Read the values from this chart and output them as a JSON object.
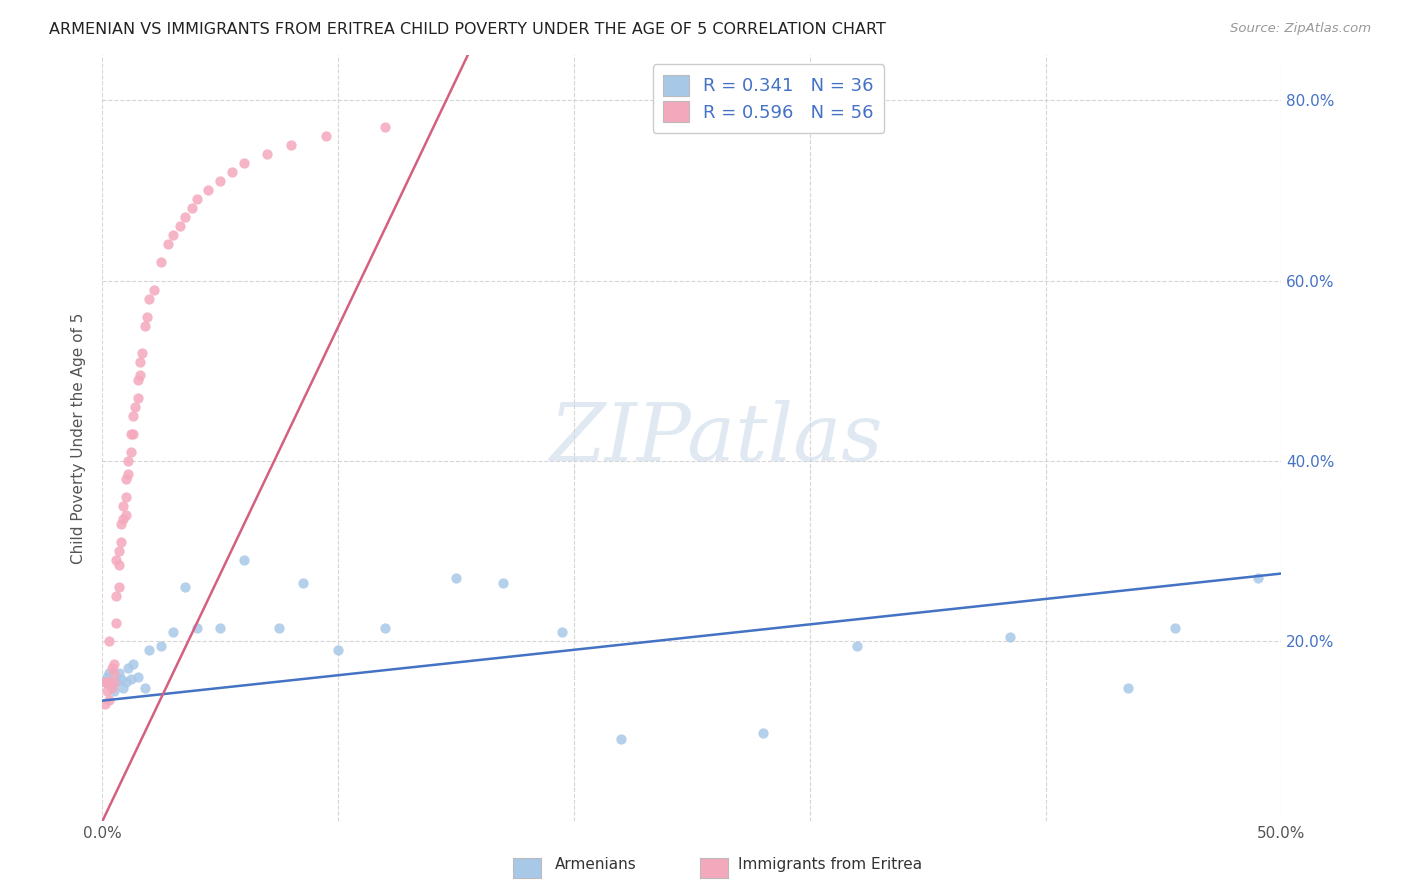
{
  "title": "ARMENIAN VS IMMIGRANTS FROM ERITREA CHILD POVERTY UNDER THE AGE OF 5 CORRELATION CHART",
  "source": "Source: ZipAtlas.com",
  "ylabel": "Child Poverty Under the Age of 5",
  "xlim": [
    0.0,
    0.5
  ],
  "ylim": [
    0.0,
    0.85
  ],
  "xtick_vals": [
    0.0,
    0.1,
    0.2,
    0.3,
    0.4,
    0.5
  ],
  "ytick_vals": [
    0.0,
    0.2,
    0.4,
    0.6,
    0.8
  ],
  "ytick_labels": [
    "",
    "20.0%",
    "40.0%",
    "60.0%",
    "80.0%"
  ],
  "xtick_labels": [
    "0.0%",
    "",
    "",
    "",
    "",
    "50.0%"
  ],
  "blue_color": "#A8C8E8",
  "pink_color": "#F4A8BC",
  "blue_line_color": "#4472C4",
  "pink_line_color": "#D46080",
  "watermark_text": "ZIPatlas",
  "background_color": "#FFFFFF",
  "grid_color": "#CCCCCC",
  "arm_x": [
    0.001,
    0.002,
    0.003,
    0.004,
    0.005,
    0.006,
    0.007,
    0.008,
    0.009,
    0.01,
    0.011,
    0.012,
    0.013,
    0.015,
    0.018,
    0.02,
    0.025,
    0.03,
    0.035,
    0.04,
    0.05,
    0.06,
    0.075,
    0.085,
    0.1,
    0.12,
    0.15,
    0.17,
    0.195,
    0.22,
    0.28,
    0.32,
    0.385,
    0.435,
    0.455,
    0.49
  ],
  "arm_y": [
    0.155,
    0.16,
    0.165,
    0.15,
    0.145,
    0.155,
    0.165,
    0.158,
    0.148,
    0.155,
    0.17,
    0.158,
    0.175,
    0.16,
    0.148,
    0.19,
    0.195,
    0.21,
    0.26,
    0.215,
    0.215,
    0.29,
    0.215,
    0.265,
    0.19,
    0.215,
    0.27,
    0.265,
    0.21,
    0.092,
    0.098,
    0.195,
    0.205,
    0.148,
    0.215,
    0.27
  ],
  "eri_x": [
    0.001,
    0.001,
    0.002,
    0.002,
    0.003,
    0.003,
    0.003,
    0.004,
    0.004,
    0.005,
    0.005,
    0.005,
    0.006,
    0.006,
    0.006,
    0.007,
    0.007,
    0.007,
    0.008,
    0.008,
    0.009,
    0.009,
    0.01,
    0.01,
    0.01,
    0.011,
    0.011,
    0.012,
    0.012,
    0.013,
    0.013,
    0.014,
    0.015,
    0.015,
    0.016,
    0.016,
    0.017,
    0.018,
    0.019,
    0.02,
    0.022,
    0.025,
    0.028,
    0.03,
    0.033,
    0.035,
    0.038,
    0.04,
    0.045,
    0.05,
    0.055,
    0.06,
    0.07,
    0.08,
    0.095,
    0.12
  ],
  "eri_y": [
    0.155,
    0.13,
    0.155,
    0.145,
    0.2,
    0.155,
    0.135,
    0.17,
    0.148,
    0.175,
    0.165,
    0.155,
    0.29,
    0.25,
    0.22,
    0.3,
    0.285,
    0.26,
    0.33,
    0.31,
    0.35,
    0.335,
    0.38,
    0.36,
    0.34,
    0.4,
    0.385,
    0.43,
    0.41,
    0.45,
    0.43,
    0.46,
    0.49,
    0.47,
    0.51,
    0.495,
    0.52,
    0.55,
    0.56,
    0.58,
    0.59,
    0.62,
    0.64,
    0.65,
    0.66,
    0.67,
    0.68,
    0.69,
    0.7,
    0.71,
    0.72,
    0.73,
    0.74,
    0.75,
    0.76,
    0.77
  ]
}
